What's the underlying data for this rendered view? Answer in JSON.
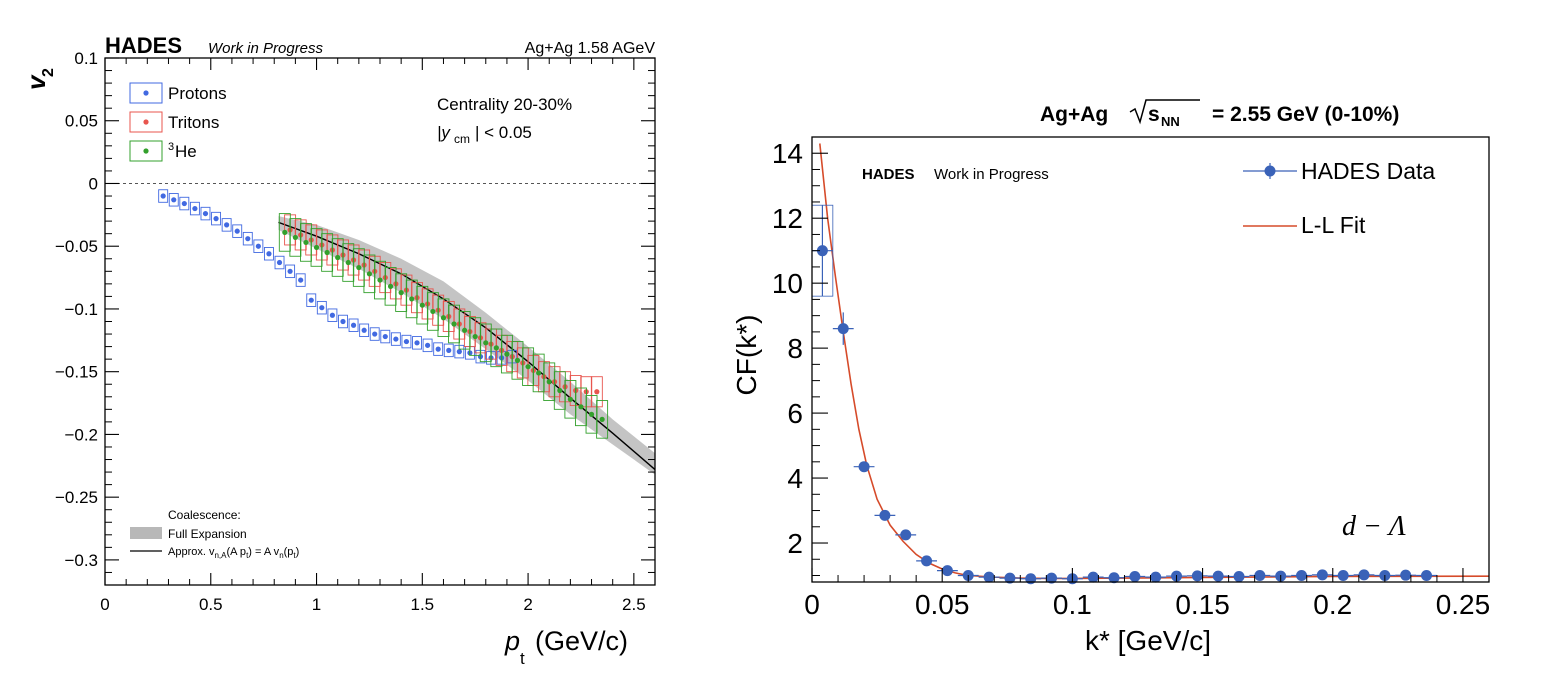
{
  "chart_data": [
    {
      "type": "scatter",
      "title": "Ag+Ag 1.58 AGeV",
      "experiment": "HADES",
      "status": "Work in Progress",
      "xlabel": "p",
      "xlabel_sub": "t",
      "xlabel_unit": "(GeV/c)",
      "ylabel": "v",
      "ylabel_sub": "2",
      "xlim": [
        0,
        2.6
      ],
      "ylim": [
        -0.32,
        0.1
      ],
      "x_ticks": [
        "0",
        "0.5",
        "1",
        "1.5",
        "2",
        "2.5"
      ],
      "y_ticks": [
        "0.1",
        "0.05",
        "0",
        "−0.05",
        "−0.1",
        "−0.15",
        "−0.2",
        "−0.25",
        "−0.3"
      ],
      "annotations": [
        "Centrality 20-30%",
        "|y",
        "cm",
        "| < 0.05"
      ],
      "legend": {
        "placement": "top-left",
        "entries": [
          {
            "label": "Protons",
            "color": "#4169e1"
          },
          {
            "label": "Tritons",
            "color": "#e8554e"
          },
          {
            "label": "He",
            "superscript": "3",
            "color": "#33a02c"
          }
        ]
      },
      "model_legend": {
        "placement": "bottom-left",
        "title": "Coalescence:",
        "entries": [
          {
            "label": "Full Expansion",
            "color": "#b8b8b8"
          },
          {
            "label": "Approx. v",
            "sub1": "n,A",
            "mid": "(A p",
            "sub2": "t",
            "mid2": ") = A v",
            "sub3": "n",
            "mid3": "(p",
            "sub4": "t",
            "end": ")",
            "color": "#000000"
          }
        ]
      },
      "series": [
        {
          "name": "Protons",
          "color": "#4169e1",
          "x": [
            0.275,
            0.325,
            0.375,
            0.425,
            0.475,
            0.525,
            0.575,
            0.625,
            0.675,
            0.725,
            0.775,
            0.825,
            0.875,
            0.925,
            0.975,
            1.025,
            1.075,
            1.125,
            1.175,
            1.225,
            1.275,
            1.325,
            1.375,
            1.425,
            1.475,
            1.525,
            1.575,
            1.625,
            1.675,
            1.725,
            1.775,
            1.825,
            1.875,
            1.925
          ],
          "y": [
            -0.01,
            -0.013,
            -0.016,
            -0.02,
            -0.024,
            -0.028,
            -0.033,
            -0.038,
            -0.044,
            -0.05,
            -0.056,
            -0.063,
            -0.07,
            -0.077,
            -0.093,
            -0.099,
            -0.105,
            -0.11,
            -0.113,
            -0.117,
            -0.12,
            -0.122,
            -0.124,
            -0.126,
            -0.127,
            -0.129,
            -0.132,
            -0.133,
            -0.134,
            -0.135,
            -0.138,
            -0.139,
            -0.139,
            -0.138
          ],
          "sys_err": 0.005
        },
        {
          "name": "Tritons",
          "color": "#e8554e",
          "x": [
            0.875,
            0.925,
            0.975,
            1.025,
            1.075,
            1.125,
            1.175,
            1.225,
            1.275,
            1.325,
            1.375,
            1.425,
            1.475,
            1.525,
            1.575,
            1.625,
            1.675,
            1.725,
            1.775,
            1.825,
            1.875,
            1.925,
            1.975,
            2.025,
            2.075,
            2.125,
            2.175,
            2.225,
            2.275,
            2.325
          ],
          "y": [
            -0.037,
            -0.041,
            -0.045,
            -0.049,
            -0.053,
            -0.057,
            -0.061,
            -0.065,
            -0.07,
            -0.075,
            -0.08,
            -0.085,
            -0.091,
            -0.096,
            -0.101,
            -0.106,
            -0.112,
            -0.118,
            -0.123,
            -0.128,
            -0.133,
            -0.138,
            -0.143,
            -0.149,
            -0.154,
            -0.158,
            -0.162,
            -0.165,
            -0.166,
            -0.166
          ],
          "sys_err": 0.012
        },
        {
          "name": "3He",
          "color": "#33a02c",
          "x": [
            0.85,
            0.9,
            0.95,
            1.0,
            1.05,
            1.1,
            1.15,
            1.2,
            1.25,
            1.3,
            1.35,
            1.4,
            1.45,
            1.5,
            1.55,
            1.6,
            1.65,
            1.7,
            1.75,
            1.8,
            1.85,
            1.9,
            1.95,
            2.0,
            2.05,
            2.1,
            2.15,
            2.2,
            2.25,
            2.3,
            2.35
          ],
          "y": [
            -0.039,
            -0.043,
            -0.047,
            -0.051,
            -0.055,
            -0.059,
            -0.063,
            -0.067,
            -0.072,
            -0.077,
            -0.082,
            -0.087,
            -0.092,
            -0.097,
            -0.102,
            -0.107,
            -0.112,
            -0.117,
            -0.122,
            -0.127,
            -0.131,
            -0.136,
            -0.141,
            -0.146,
            -0.151,
            -0.158,
            -0.165,
            -0.172,
            -0.178,
            -0.184,
            -0.188
          ],
          "sys_err": 0.015
        }
      ],
      "band": {
        "name": "Full Expansion",
        "x": [
          0.82,
          1.0,
          1.2,
          1.4,
          1.6,
          1.8,
          2.0,
          2.2,
          2.4,
          2.6
        ],
        "lower": [
          -0.037,
          -0.052,
          -0.068,
          -0.087,
          -0.108,
          -0.132,
          -0.157,
          -0.184,
          -0.208,
          -0.232
        ],
        "upper": [
          -0.026,
          -0.033,
          -0.045,
          -0.06,
          -0.078,
          -0.103,
          -0.13,
          -0.158,
          -0.188,
          -0.215
        ]
      },
      "approx_line": {
        "x": [
          0.82,
          1.0,
          1.2,
          1.4,
          1.6,
          1.8,
          2.0,
          2.2,
          2.4,
          2.6
        ],
        "y": [
          -0.031,
          -0.042,
          -0.056,
          -0.072,
          -0.092,
          -0.115,
          -0.142,
          -0.171,
          -0.199,
          -0.228
        ]
      }
    },
    {
      "type": "scatter",
      "title": "Ag+Ag",
      "title_sqrt": "s",
      "title_sub": "NN",
      "title_tail": "= 2.55 GeV (0-10%)",
      "experiment": "HADES",
      "status": "Work in Progress",
      "xlabel": "k* [GeV/c]",
      "ylabel": "CF(k*)",
      "xlim": [
        0,
        0.26
      ],
      "ylim": [
        0.8,
        14.5
      ],
      "x_ticks": [
        "0",
        "0.05",
        "0.1",
        "0.15",
        "0.2",
        "0.25"
      ],
      "y_ticks": [
        "14",
        "12",
        "10",
        "8",
        "6",
        "4",
        "2"
      ],
      "annotation": "d − Λ",
      "legend": {
        "placement": "top-right",
        "entries": [
          {
            "label": "HADES Data",
            "color": "#3a62b8"
          },
          {
            "label": "L-L Fit",
            "color": "#d64b2a"
          }
        ]
      },
      "series": [
        {
          "name": "HADES Data",
          "color": "#3a62b8",
          "x": [
            0.004,
            0.012,
            0.02,
            0.028,
            0.036,
            0.044,
            0.052,
            0.06,
            0.068,
            0.076,
            0.084,
            0.092,
            0.1,
            0.108,
            0.116,
            0.124,
            0.132,
            0.14,
            0.148,
            0.156,
            0.164,
            0.172,
            0.18,
            0.188,
            0.196,
            0.204,
            0.212,
            0.22,
            0.228,
            0.236
          ],
          "y": [
            11.0,
            8.6,
            4.35,
            2.85,
            2.25,
            1.45,
            1.15,
            1.0,
            0.95,
            0.92,
            0.9,
            0.92,
            0.9,
            0.95,
            0.93,
            0.97,
            0.95,
            0.98,
            0.99,
            0.98,
            0.97,
            1.0,
            0.98,
            1.0,
            1.02,
            1.0,
            1.02,
            1.0,
            1.01,
            1.0
          ],
          "y_err": [
            1.4,
            0.5,
            0.15,
            0.1,
            0.08,
            0.05,
            0.04,
            0.03,
            0.03,
            0.03,
            0.03,
            0.03,
            0.03,
            0.03,
            0.03,
            0.03,
            0.03,
            0.03,
            0.03,
            0.03,
            0.03,
            0.03,
            0.03,
            0.03,
            0.03,
            0.03,
            0.03,
            0.03,
            0.03,
            0.03
          ]
        }
      ],
      "fit": {
        "name": "L-L Fit",
        "x": [
          0.003,
          0.006,
          0.009,
          0.012,
          0.015,
          0.018,
          0.021,
          0.025,
          0.03,
          0.035,
          0.04,
          0.045,
          0.05,
          0.055,
          0.06,
          0.07,
          0.08,
          0.09,
          0.1,
          0.12,
          0.15,
          0.2,
          0.26
        ],
        "y": [
          14.3,
          12.0,
          10.2,
          8.5,
          6.9,
          5.5,
          4.4,
          3.35,
          2.55,
          2.05,
          1.65,
          1.38,
          1.2,
          1.08,
          1.0,
          0.95,
          0.92,
          0.91,
          0.91,
          0.92,
          0.94,
          0.97,
          0.98
        ]
      }
    }
  ]
}
